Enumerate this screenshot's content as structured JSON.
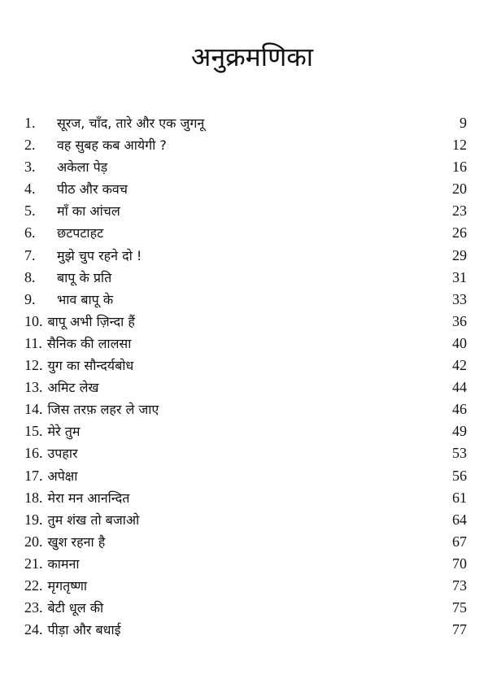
{
  "title": "अनुक्रमणिका",
  "entries": [
    {
      "num": "1.",
      "title": "सूरज, चाँद, तारे और एक जुगनू",
      "page": "9"
    },
    {
      "num": "2.",
      "title": "वह सुबह कब आयेगी ?",
      "page": "12"
    },
    {
      "num": "3.",
      "title": "अकेला पेड़",
      "page": "16"
    },
    {
      "num": "4.",
      "title": "पीठ और कवच",
      "page": "20"
    },
    {
      "num": "5.",
      "title": "माँ का आंचल",
      "page": "23"
    },
    {
      "num": "6.",
      "title": "छटपटाहट",
      "page": "26"
    },
    {
      "num": "7.",
      "title": "मुझे चुप रहने दो !",
      "page": "29"
    },
    {
      "num": "8.",
      "title": "बापू के प्रति",
      "page": "31"
    },
    {
      "num": "9.",
      "title": "भाव बापू के",
      "page": "33"
    },
    {
      "num": "10.",
      "title": "बापू अभी ज़िन्दा हैं",
      "page": "36"
    },
    {
      "num": "11.",
      "title": "सैनिक की लालसा",
      "page": "40"
    },
    {
      "num": "12.",
      "title": "युग का सौन्दर्यबोध",
      "page": "42"
    },
    {
      "num": "13.",
      "title": "अमिट लेख",
      "page": "44"
    },
    {
      "num": "14.",
      "title": "जिस तरफ़ लहर ले जाए",
      "page": "46"
    },
    {
      "num": "15.",
      "title": "मेरे तुम",
      "page": "49"
    },
    {
      "num": "16.",
      "title": "उपहार",
      "page": "53"
    },
    {
      "num": "17.",
      "title": "अपेक्षा",
      "page": "56"
    },
    {
      "num": "18.",
      "title": "मेरा मन आनन्दित",
      "page": "61"
    },
    {
      "num": "19.",
      "title": "तुम शंख तो बजाओ",
      "page": "64"
    },
    {
      "num": "20.",
      "title": "खुश रहना है",
      "page": "67"
    },
    {
      "num": "21.",
      "title": "कामना",
      "page": "70"
    },
    {
      "num": "22.",
      "title": "मृगतृष्णा",
      "page": "73"
    },
    {
      "num": "23.",
      "title": "बेटी धूल की",
      "page": "75"
    },
    {
      "num": "24.",
      "title": "पीड़ा और बधाई",
      "page": "77"
    }
  ]
}
